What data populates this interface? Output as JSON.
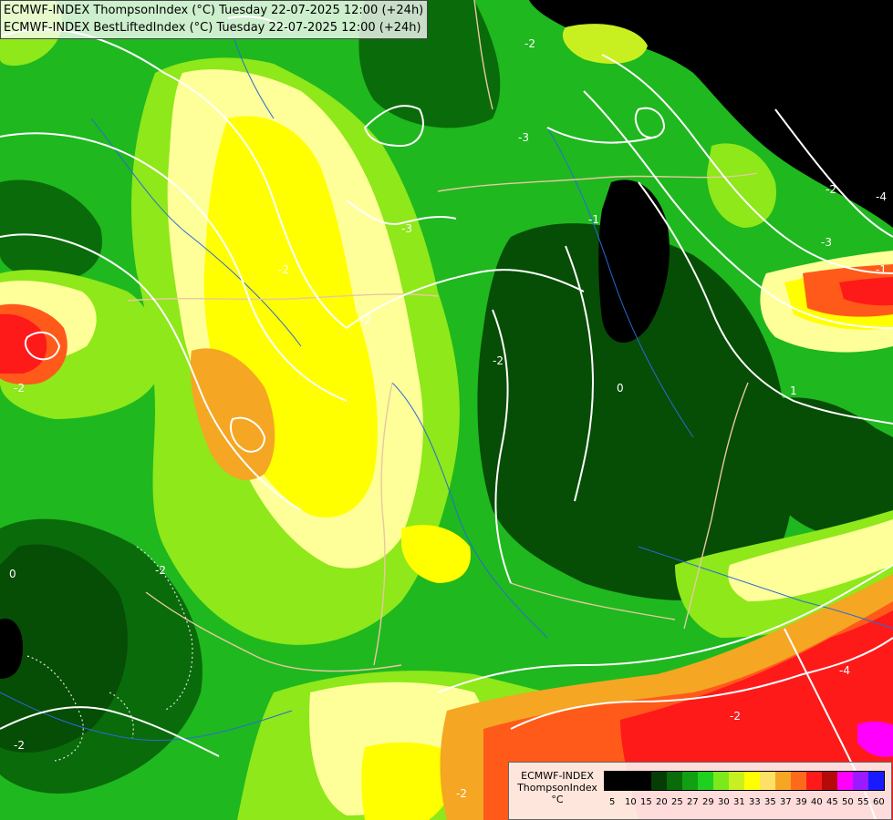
{
  "header": {
    "line1": "ECMWF-INDEX ThompsonIndex (°C) Tuesday 22-07-2025 12:00 (+24h)",
    "line2": "ECMWF-INDEX BestLiftedIndex (°C) Tuesday 22-07-2025 12:00 (+24h)"
  },
  "legend": {
    "title_line1": "ECMWF-INDEX",
    "title_line2": "ThompsonIndex",
    "title_line3": "°C",
    "ticks": [
      "5",
      "10",
      "15",
      "20",
      "25",
      "27",
      "29",
      "30",
      "31",
      "33",
      "35",
      "37",
      "39",
      "40",
      "45",
      "50",
      "55",
      "60"
    ],
    "colors": [
      "#000000",
      "#000000",
      "#000000",
      "#053e05",
      "#0a6b0a",
      "#12a012",
      "#20d020",
      "#7de81c",
      "#c8f020",
      "#ffff00",
      "#ffe066",
      "#f5a623",
      "#ff6a1a",
      "#ff1a1a",
      "#b40a0a",
      "#ff00ff",
      "#9b1aff",
      "#1a1aff"
    ]
  },
  "contour_labels": [
    "-3",
    "-2",
    "-1",
    "0",
    "1",
    "-2",
    "-3",
    "-4",
    "-2",
    "-2",
    "-3",
    "-2",
    "0",
    "-1",
    "-2",
    "-2",
    "-4",
    "-2",
    "-2",
    "-2"
  ],
  "colors": {
    "black": "#000000",
    "dark_green": "#064d06",
    "green": "#1fb81f",
    "lime": "#8ee81a",
    "yellow": "#ffff00",
    "light_yellow": "#ffff9a",
    "orange": "#f5a623",
    "red_orange": "#ff5a1a",
    "red": "#ff1a1a",
    "magenta": "#ff00ff",
    "contour": "#ffffff",
    "border": "#e8c8a0",
    "river": "#2a6bd8"
  }
}
